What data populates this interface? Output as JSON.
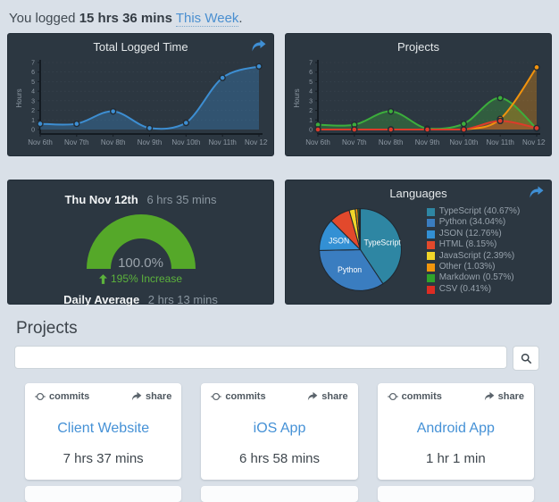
{
  "header": {
    "prefix": "You logged",
    "duration": "15 hrs 36 mins",
    "link": "This Week",
    "suffix": "."
  },
  "colors": {
    "accent_blue": "#3f8fd4",
    "gauge_green": "#55a829",
    "increase_green": "#5cb33c",
    "panel_bg": "#2c3741"
  },
  "chart_data": [
    {
      "id": "total-logged-time",
      "type": "area",
      "title": "Total Logged Time",
      "ylabel": "Hours",
      "ylim": [
        0,
        7
      ],
      "yticks": [
        0,
        1,
        2,
        3,
        4,
        5,
        6,
        7
      ],
      "categories": [
        "Nov 6th",
        "Nov 7th",
        "Nov 8th",
        "Nov 9th",
        "Nov 10th",
        "Nov 11th",
        "Nov 12th"
      ],
      "grid": true,
      "legend": false,
      "series": [
        {
          "name": "total-logged-time",
          "color": "#3d8ed2",
          "values": [
            0.6,
            0.6,
            1.9,
            0.15,
            0.7,
            5.4,
            6.6
          ]
        }
      ]
    },
    {
      "id": "projects",
      "type": "area",
      "title": "Projects",
      "ylabel": "Hours",
      "ylim": [
        0,
        7
      ],
      "yticks": [
        0,
        1,
        2,
        3,
        4,
        5,
        6,
        7
      ],
      "categories": [
        "Nov 6th",
        "Nov 7th",
        "Nov 8th",
        "Nov 9th",
        "Nov 10th",
        "Nov 11th",
        "Nov 12th"
      ],
      "grid": true,
      "legend": false,
      "series": [
        {
          "name": "series-green",
          "color": "#3cae3c",
          "values": [
            0.5,
            0.5,
            1.9,
            0.1,
            0.6,
            3.3,
            0.1
          ]
        },
        {
          "name": "series-orange",
          "color": "#f2930d",
          "values": [
            0,
            0,
            0,
            0,
            0,
            1.1,
            6.5
          ]
        },
        {
          "name": "series-red",
          "color": "#dd3b2a",
          "values": [
            0,
            0,
            0,
            0,
            0,
            0.9,
            0.15
          ]
        }
      ]
    },
    {
      "id": "languages",
      "type": "pie",
      "title": "Languages",
      "legend_position": "right",
      "labels": [
        "TypeScript",
        "Python",
        "JSON",
        "HTML",
        "JavaScript",
        "Other",
        "Markdown",
        "CSV"
      ],
      "values": [
        40.67,
        34.04,
        12.76,
        8.15,
        2.39,
        1.03,
        0.57,
        0.41
      ],
      "colors": [
        "#2e86a3",
        "#3a7dc0",
        "#3390d4",
        "#e2492c",
        "#f0d529",
        "#f2960d",
        "#2fa42b",
        "#dd2c23"
      ],
      "slice_label_min_pct": 10
    }
  ],
  "day_summary": {
    "date": "Thu Nov 12th",
    "total": "6 hrs 35 mins",
    "gauge_percent": 100.0,
    "percent_label": "100.0%",
    "increase_label": "195% Increase",
    "daily_average_label": "Daily Average",
    "daily_average_value": "2 hrs 13 mins"
  },
  "projects_section": {
    "title": "Projects",
    "search": {
      "value": "",
      "placeholder": ""
    },
    "cards": [
      {
        "commits_label": "commits",
        "share_label": "share",
        "name": "Client Website",
        "time": "7 hrs 37 mins"
      },
      {
        "commits_label": "commits",
        "share_label": "share",
        "name": "iOS App",
        "time": "6 hrs 58 mins"
      },
      {
        "commits_label": "commits",
        "share_label": "share",
        "name": "Android App",
        "time": "1 hr 1 min"
      }
    ]
  }
}
